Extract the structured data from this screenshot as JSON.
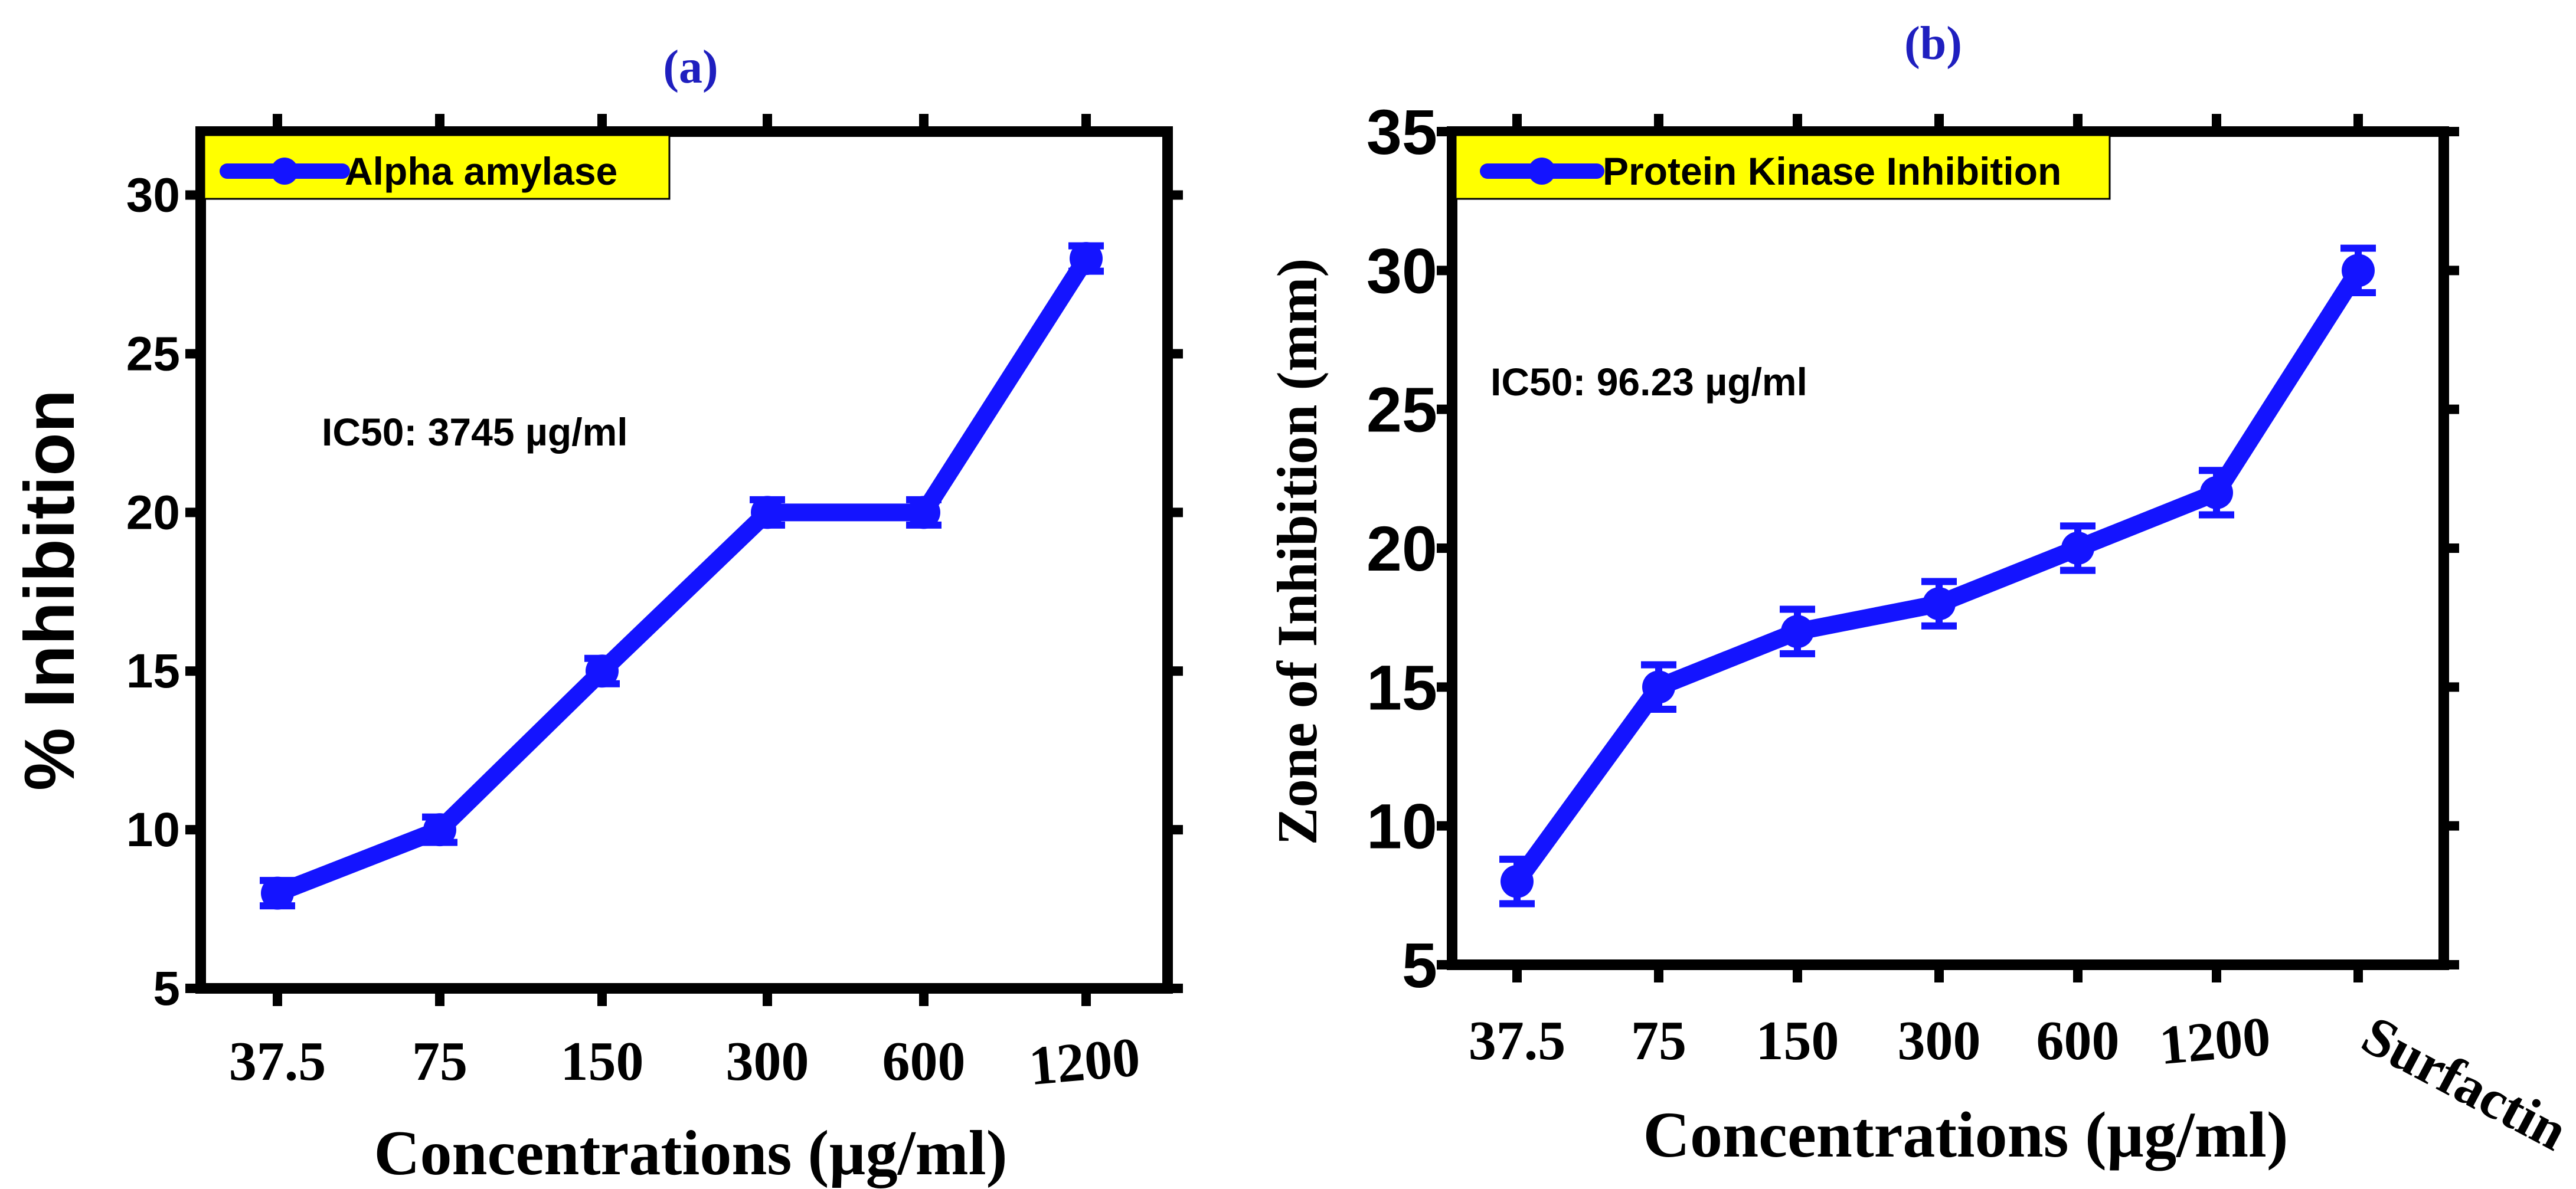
{
  "chart_data": [
    {
      "panel_label": "(a)",
      "type": "line",
      "categories": [
        "37.5",
        "75",
        "150",
        "300",
        "600",
        "1200"
      ],
      "series": [
        {
          "name": "Alpha amylase",
          "values": [
            8,
            10,
            15,
            20,
            20,
            28
          ],
          "errors": [
            0.4,
            0.4,
            0.4,
            0.4,
            0.4,
            0.4
          ],
          "color": "#1414ff"
        }
      ],
      "ylabel": "% Inhibition",
      "xlabel": "Concentrations (µg/ml)",
      "ylim": [
        5,
        32
      ],
      "yticks": [
        5,
        10,
        15,
        20,
        25,
        30
      ],
      "legend_label": "Alpha amylase",
      "legend_position": "top-left",
      "legend_bg": "#ffff00",
      "annotation": "IC50: 3745 µg/ml",
      "grid": false
    },
    {
      "panel_label": "(b)",
      "type": "line",
      "categories": [
        "37.5",
        "75",
        "150",
        "300",
        "600",
        "1200",
        "Surfactin"
      ],
      "series": [
        {
          "name": "Protein Kinase Inhibition",
          "values": [
            8,
            15,
            17,
            18,
            20,
            22,
            30
          ],
          "errors": [
            0.8,
            0.8,
            0.8,
            0.8,
            0.8,
            0.8,
            0.8
          ],
          "color": "#1414ff"
        }
      ],
      "ylabel": "Zone of Inhibition (mm)",
      "xlabel": "Concentrations (µg/ml)",
      "ylim": [
        5,
        35
      ],
      "yticks": [
        5,
        10,
        15,
        20,
        25,
        30,
        35
      ],
      "legend_label": "Protein Kinase Inhibition",
      "legend_position": "top-left",
      "legend_bg": "#ffff00",
      "annotation": "IC50: 96.23 µg/ml",
      "grid": false
    }
  ]
}
